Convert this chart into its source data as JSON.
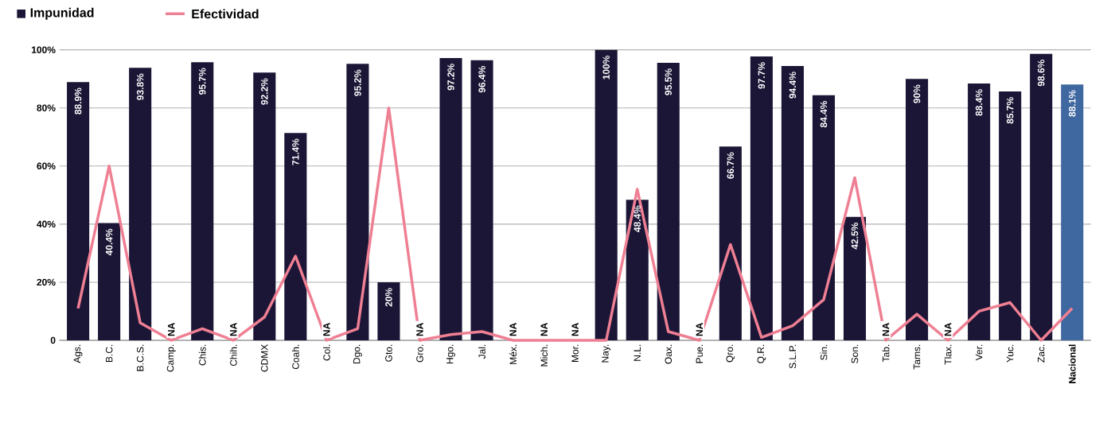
{
  "chart_data": {
    "type": "bar",
    "categories": [
      "Ags.",
      "B.C.",
      "B.C.S.",
      "Camp.",
      "Chis.",
      "Chih.",
      "CDMX",
      "Coah.",
      "Col.",
      "Dgo.",
      "Gto.",
      "Gro.",
      "Hgo.",
      "Jal.",
      "Méx.",
      "Mich.",
      "Mor.",
      "Nay.",
      "N.L.",
      "Oax.",
      "Pue.",
      "Qro.",
      "Q.R.",
      "S.L.P.",
      "Sin.",
      "Son.",
      "Tab.",
      "Tams.",
      "Tlax.",
      "Ver.",
      "Yuc.",
      "Zac.",
      "**Nacional**"
    ],
    "series": [
      {
        "name": "Impunidad",
        "color": "#1c1636",
        "colors": [
          "#1c1636",
          "#1c1636",
          "#1c1636",
          "#1c1636",
          "#1c1636",
          "#1c1636",
          "#1c1636",
          "#1c1636",
          "#1c1636",
          "#1c1636",
          "#1c1636",
          "#1c1636",
          "#1c1636",
          "#1c1636",
          "#1c1636",
          "#1c1636",
          "#1c1636",
          "#1c1636",
          "#1c1636",
          "#1c1636",
          "#1c1636",
          "#1c1636",
          "#1c1636",
          "#1c1636",
          "#1c1636",
          "#1c1636",
          "#1c1636",
          "#1c1636",
          "#1c1636",
          "#1c1636",
          "#1c1636",
          "#1c1636",
          "#3f67a0"
        ],
        "values": [
          88.9,
          40.4,
          93.8,
          null,
          95.7,
          null,
          92.2,
          71.4,
          null,
          95.2,
          20,
          null,
          97.2,
          96.4,
          null,
          null,
          null,
          100,
          48.4,
          95.5,
          null,
          66.7,
          97.7,
          94.4,
          84.4,
          42.5,
          null,
          90,
          null,
          88.4,
          85.7,
          98.6,
          88.1
        ],
        "value_labels": [
          "88.9%",
          "40.4%",
          "93.8%",
          "NA",
          "95.7%",
          "NA",
          "92.2%",
          "71.4%",
          "NA",
          "95.2%",
          "20%",
          "NA",
          "97.2%",
          "96.4%",
          "NA",
          "NA",
          "NA",
          "100%",
          "48.4%",
          "95.5%",
          "NA",
          "66.7%",
          "97.7%",
          "94.4%",
          "84.4%",
          "42.5%",
          "NA",
          "90%",
          "NA",
          "88.4%",
          "85.7%",
          "98.6%",
          "88.1%"
        ]
      },
      {
        "name": "Efectividad",
        "type": "line",
        "color": "#ef7f93",
        "values": [
          11,
          60,
          6,
          0,
          4,
          0,
          8,
          29,
          0,
          4,
          80,
          0,
          2,
          3,
          0,
          0,
          0,
          0,
          52,
          3,
          0,
          33,
          1,
          5,
          14,
          56,
          0,
          9,
          0,
          10,
          13,
          0,
          11
        ]
      }
    ],
    "ylim": [
      0,
      100
    ],
    "yticks": [
      0,
      {
        "value": 20,
        "label": "20%"
      },
      {
        "value": 40,
        "label": "40%"
      },
      {
        "value": 60,
        "label": "60%"
      },
      {
        "value": 80,
        "label": "80%"
      },
      {
        "value": 100,
        "label": "100%"
      }
    ],
    "grid": "y",
    "legend": "top left",
    "marker": "none",
    "line_style": "solid"
  }
}
